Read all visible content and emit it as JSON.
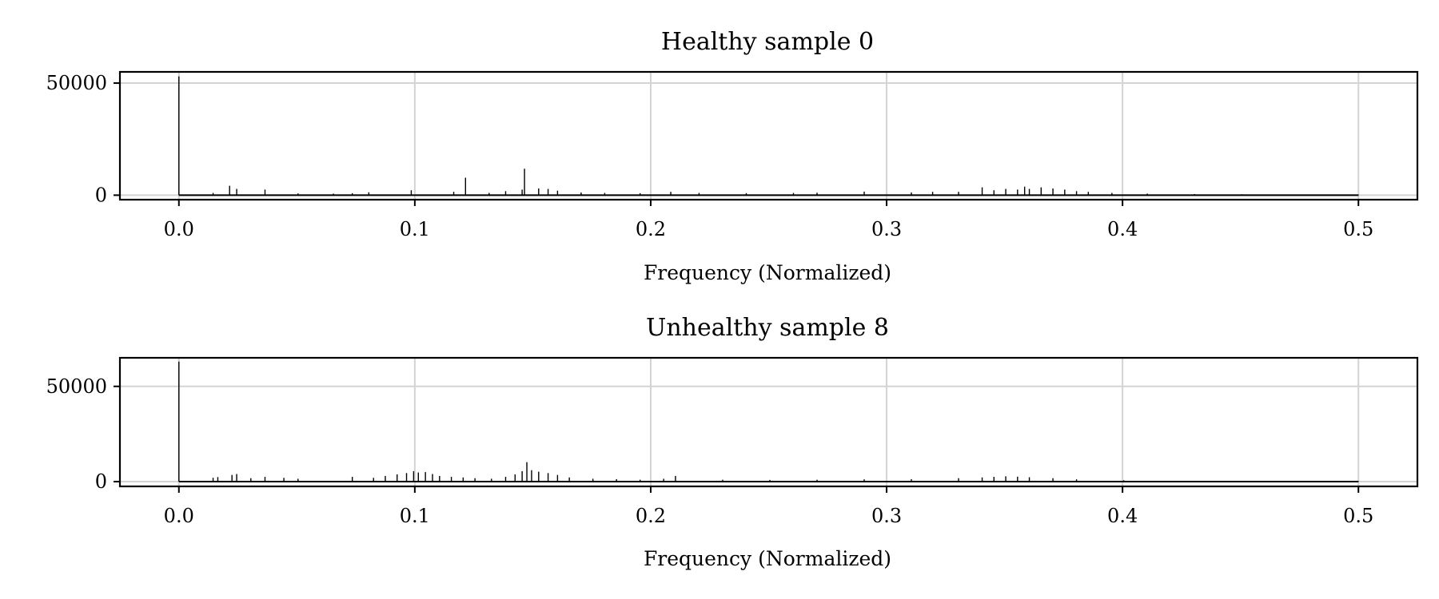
{
  "chart_data": [
    {
      "type": "line",
      "title": "Healthy sample 0",
      "xlabel": "Frequency (Normalized)",
      "ylabel": "",
      "xlim": [
        -0.025,
        0.525
      ],
      "ylim": [
        -2000,
        55000
      ],
      "xticks": [
        0.0,
        0.1,
        0.2,
        0.3,
        0.4,
        0.5
      ],
      "xtick_labels": [
        "0.0",
        "0.1",
        "0.2",
        "0.3",
        "0.4",
        "0.5"
      ],
      "yticks": [
        0,
        50000
      ],
      "ytick_labels": [
        "0",
        "50000"
      ],
      "grid": true,
      "series": [
        {
          "x": [
            0.0,
            0.0145,
            0.0215,
            0.0245,
            0.0365,
            0.0505,
            0.0655,
            0.0735,
            0.0805,
            0.0985,
            0.1165,
            0.1215,
            0.1315,
            0.1385,
            0.1455,
            0.1465,
            0.1525,
            0.1565,
            0.1605,
            0.1705,
            0.1805,
            0.1955,
            0.2085,
            0.2205,
            0.2405,
            0.2605,
            0.2705,
            0.2905,
            0.3105,
            0.3195,
            0.3305,
            0.3405,
            0.3455,
            0.3505,
            0.3555,
            0.3585,
            0.3605,
            0.3655,
            0.3705,
            0.3755,
            0.3805,
            0.3855,
            0.3955,
            0.4105,
            0.4305,
            0.4505,
            0.4705,
            0.5
          ],
          "y": [
            53000,
            1000,
            4200,
            2800,
            2500,
            800,
            700,
            900,
            1300,
            2200,
            1500,
            7800,
            1000,
            1800,
            2500,
            11800,
            3000,
            2800,
            2000,
            1200,
            1000,
            900,
            1500,
            1000,
            900,
            1000,
            1100,
            1600,
            1200,
            1500,
            1500,
            3500,
            2200,
            2800,
            2500,
            3800,
            2800,
            3500,
            3000,
            2500,
            1800,
            1500,
            1000,
            700,
            500,
            400,
            300,
            200
          ]
        }
      ]
    },
    {
      "type": "line",
      "title": "Unhealthy sample 8",
      "xlabel": "Frequency (Normalized)",
      "ylabel": "",
      "xlim": [
        -0.025,
        0.525
      ],
      "ylim": [
        -2500,
        65000
      ],
      "xticks": [
        0.0,
        0.1,
        0.2,
        0.3,
        0.4,
        0.5
      ],
      "xtick_labels": [
        "0.0",
        "0.1",
        "0.2",
        "0.3",
        "0.4",
        "0.5"
      ],
      "yticks": [
        0,
        50000
      ],
      "ytick_labels": [
        "0",
        "50000"
      ],
      "grid": true,
      "series": [
        {
          "x": [
            0.0,
            0.0145,
            0.0165,
            0.0225,
            0.0245,
            0.0305,
            0.0365,
            0.0445,
            0.0505,
            0.0735,
            0.0825,
            0.0875,
            0.0925,
            0.0965,
            0.0995,
            0.1015,
            0.1045,
            0.1075,
            0.1105,
            0.1155,
            0.1205,
            0.1255,
            0.1325,
            0.1385,
            0.1425,
            0.1455,
            0.1475,
            0.1495,
            0.1525,
            0.1565,
            0.1605,
            0.1655,
            0.1755,
            0.1855,
            0.1955,
            0.2055,
            0.2105,
            0.2305,
            0.2505,
            0.2705,
            0.2905,
            0.3105,
            0.3305,
            0.3405,
            0.3455,
            0.3505,
            0.3555,
            0.3605,
            0.3705,
            0.3805,
            0.4005,
            0.4505,
            0.5
          ],
          "y": [
            63000,
            2000,
            2400,
            3500,
            4000,
            1800,
            2500,
            2000,
            1500,
            2500,
            2000,
            3000,
            3800,
            4500,
            5500,
            4800,
            5000,
            4000,
            3000,
            2500,
            2200,
            1800,
            1500,
            2500,
            3800,
            5500,
            10200,
            6000,
            5200,
            4500,
            3500,
            2200,
            1500,
            1300,
            1000,
            1500,
            3000,
            1000,
            900,
            1000,
            1200,
            1300,
            1800,
            2200,
            2500,
            2800,
            2600,
            2300,
            1800,
            1200,
            700,
            400,
            200
          ]
        }
      ]
    }
  ]
}
